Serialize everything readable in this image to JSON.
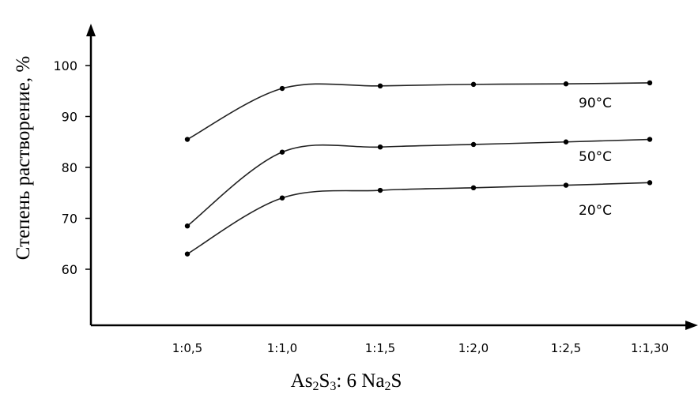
{
  "chart_data": {
    "type": "line",
    "ylabel": "Степень растворение, %",
    "xlabel": {
      "parts": [
        {
          "text": "As",
          "sub": false
        },
        {
          "text": "2",
          "sub": true
        },
        {
          "text": "S",
          "sub": false
        },
        {
          "text": "3",
          "sub": true
        },
        {
          "text": ": 6 Na",
          "sub": false
        },
        {
          "text": "2",
          "sub": true
        },
        {
          "text": "S",
          "sub": false
        }
      ]
    },
    "categories": [
      "1:0,5",
      "1:1,0",
      "1:1,5",
      "1:2,0",
      "1:2,5",
      "1:1,30"
    ],
    "y_ticks": [
      60,
      70,
      80,
      90,
      100
    ],
    "series": [
      {
        "name": "90°C",
        "values": [
          85.5,
          95.5,
          96.0,
          96.3,
          96.4,
          96.6
        ]
      },
      {
        "name": "50°C",
        "values": [
          68.5,
          83.0,
          84.0,
          84.5,
          85.0,
          85.5
        ]
      },
      {
        "name": "20°C",
        "values": [
          63.0,
          74.0,
          75.5,
          76.0,
          76.5,
          77.0
        ]
      }
    ]
  }
}
